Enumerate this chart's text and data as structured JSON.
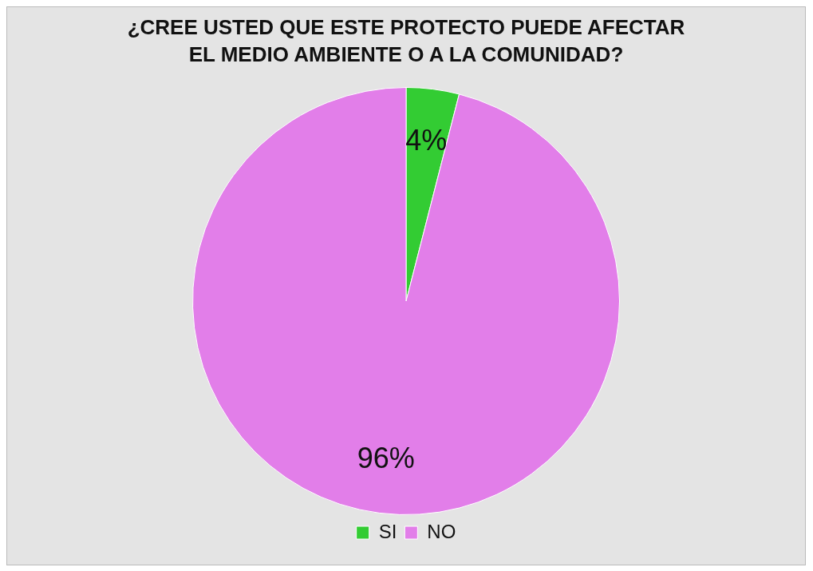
{
  "chart_data": {
    "type": "pie",
    "title": "¿CREE USTED QUE ESTE PROTECTO PUEDE AFECTAR EL MEDIO AMBIENTE O A LA COMUNIDAD?",
    "categories": [
      "SI",
      "NO"
    ],
    "values": [
      4,
      96
    ],
    "colors": [
      "#33cc33",
      "#e27ee9"
    ],
    "value_labels": [
      "4%",
      "96%"
    ],
    "legend": "bottom"
  }
}
